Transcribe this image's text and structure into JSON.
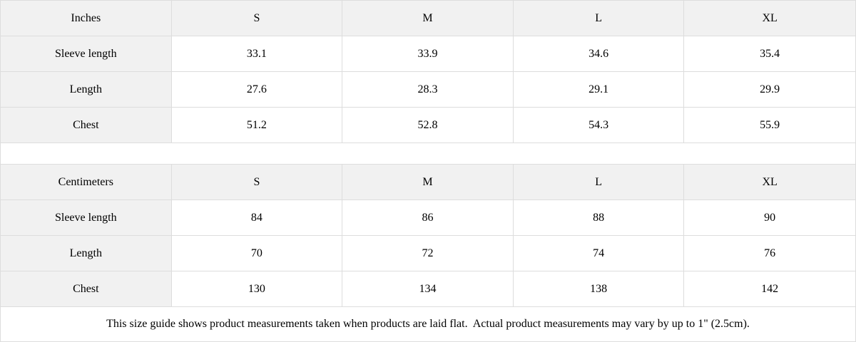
{
  "tables": [
    {
      "unit_header": "Inches",
      "size_headers": [
        "S",
        "M",
        "L",
        "XL"
      ],
      "rows": [
        {
          "label": "Sleeve length",
          "values": [
            "33.1",
            "33.9",
            "34.6",
            "35.4"
          ]
        },
        {
          "label": "Length",
          "values": [
            "27.6",
            "28.3",
            "29.1",
            "29.9"
          ]
        },
        {
          "label": "Chest",
          "values": [
            "51.2",
            "52.8",
            "54.3",
            "55.9"
          ]
        }
      ]
    },
    {
      "unit_header": "Centimeters",
      "size_headers": [
        "S",
        "M",
        "L",
        "XL"
      ],
      "rows": [
        {
          "label": "Sleeve length",
          "values": [
            "84",
            "86",
            "88",
            "90"
          ]
        },
        {
          "label": "Length",
          "values": [
            "70",
            "72",
            "74",
            "76"
          ]
        },
        {
          "label": "Chest",
          "values": [
            "130",
            "134",
            "138",
            "142"
          ]
        }
      ]
    }
  ],
  "footer": {
    "note": "This size guide shows product measurements taken when products are laid flat.  Actual product measurements may vary by up to 1\" (2.5cm)."
  },
  "colors": {
    "header_bg": "#f1f1f1",
    "border": "#dddddd",
    "text": "#000000",
    "background": "#ffffff"
  }
}
